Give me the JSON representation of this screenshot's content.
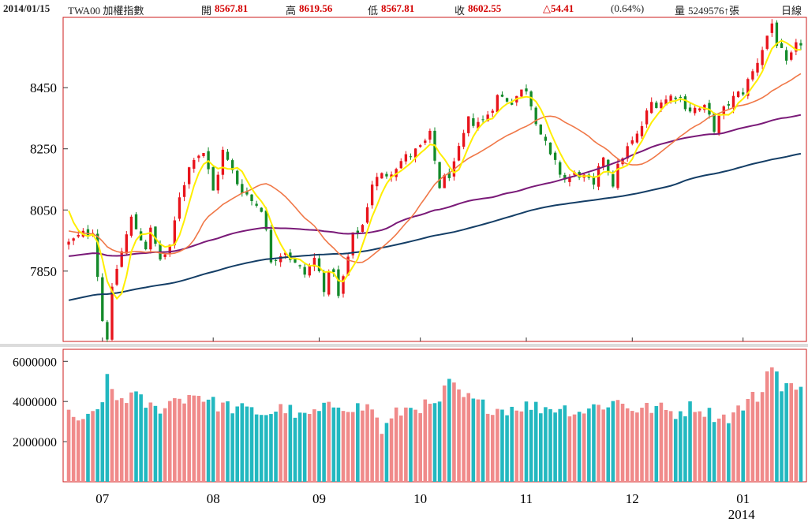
{
  "header": {
    "date": "2014/01/15",
    "symbol": "TWA00 加權指數",
    "open_label": "開",
    "open": "8567.81",
    "high_label": "高",
    "high": "8619.56",
    "low_label": "低",
    "low": "8567.81",
    "close_label": "收",
    "close": "8602.55",
    "change": "△54.41",
    "change_pct": "(0.64%)",
    "volume_label": "量",
    "volume": "5249576↑張",
    "period": "日線"
  },
  "colors": {
    "up": "#e8141c",
    "down": "#138a2a",
    "vol_up": "#f08a8a",
    "vol_down": "#22b8c0",
    "ma5": "#ffee00",
    "ma20": "#f07848",
    "ma60": "#7a1a78",
    "ma120": "#143e66",
    "frame": "#cc1b1b",
    "grid": "#e0e0e0"
  },
  "chart_data": [
    {
      "type": "candlestick",
      "ylim": [
        7620,
        8680
      ],
      "y_ticks": [
        7850,
        8050,
        8250,
        8450
      ],
      "x_tick_labels": [
        {
          "label": "07",
          "index": 7
        },
        {
          "label": "08",
          "index": 30
        },
        {
          "label": "09",
          "index": 52
        },
        {
          "label": "10",
          "index": 73
        },
        {
          "label": "11",
          "index": 95
        },
        {
          "label": "12",
          "index": 117
        },
        {
          "label": "01",
          "index": 140
        }
      ],
      "year_label": {
        "label": "2014",
        "index": 140
      },
      "days": 153,
      "anchors": [
        [
          0,
          7940
        ],
        [
          5,
          7990
        ],
        [
          7,
          7690
        ],
        [
          8,
          7640
        ],
        [
          9,
          7780
        ],
        [
          10,
          7860
        ],
        [
          13,
          8020
        ],
        [
          16,
          7930
        ],
        [
          17,
          7980
        ],
        [
          19,
          7890
        ],
        [
          21,
          7920
        ],
        [
          23,
          8100
        ],
        [
          26,
          8230
        ],
        [
          28,
          8240
        ],
        [
          30,
          8110
        ],
        [
          32,
          8240
        ],
        [
          35,
          8140
        ],
        [
          38,
          8080
        ],
        [
          40,
          8060
        ],
        [
          42,
          7890
        ],
        [
          45,
          7920
        ],
        [
          47,
          7870
        ],
        [
          49,
          7840
        ],
        [
          51,
          7890
        ],
        [
          53,
          7800
        ],
        [
          55,
          7860
        ],
        [
          56,
          7760
        ],
        [
          59,
          7960
        ],
        [
          61,
          8000
        ],
        [
          63,
          8140
        ],
        [
          66,
          8170
        ],
        [
          69,
          8210
        ],
        [
          73,
          8250
        ],
        [
          75,
          8290
        ],
        [
          77,
          8130
        ],
        [
          80,
          8190
        ],
        [
          83,
          8340
        ],
        [
          86,
          8340
        ],
        [
          89,
          8420
        ],
        [
          92,
          8410
        ],
        [
          95,
          8450
        ],
        [
          98,
          8300
        ],
        [
          100,
          8220
        ],
        [
          103,
          8150
        ],
        [
          106,
          8170
        ],
        [
          109,
          8120
        ],
        [
          111,
          8230
        ],
        [
          113,
          8140
        ],
        [
          115,
          8230
        ],
        [
          118,
          8290
        ],
        [
          121,
          8400
        ],
        [
          124,
          8410
        ],
        [
          126,
          8430
        ],
        [
          129,
          8380
        ],
        [
          132,
          8380
        ],
        [
          134,
          8320
        ],
        [
          137,
          8400
        ],
        [
          140,
          8440
        ],
        [
          142,
          8500
        ],
        [
          144,
          8580
        ],
        [
          146,
          8660
        ],
        [
          147,
          8600
        ],
        [
          149,
          8520
        ],
        [
          151,
          8580
        ],
        [
          153,
          8620
        ]
      ]
    },
    {
      "type": "bar",
      "ylim": [
        0,
        6600000
      ],
      "y_ticks": [
        2000000,
        4000000,
        6000000
      ],
      "vol_anchors": [
        [
          0,
          3500000
        ],
        [
          3,
          2900000
        ],
        [
          6,
          3600000
        ],
        [
          8,
          4900000
        ],
        [
          10,
          4100000
        ],
        [
          13,
          4300000
        ],
        [
          18,
          3600000
        ],
        [
          23,
          4200000
        ],
        [
          27,
          4400000
        ],
        [
          30,
          3900000
        ],
        [
          36,
          3600000
        ],
        [
          41,
          3400000
        ],
        [
          45,
          3700000
        ],
        [
          48,
          3200000
        ],
        [
          52,
          3500000
        ],
        [
          56,
          3900000
        ],
        [
          60,
          3700000
        ],
        [
          63,
          3700000
        ],
        [
          65,
          2500000
        ],
        [
          68,
          3400000
        ],
        [
          72,
          3800000
        ],
        [
          76,
          3700000
        ],
        [
          79,
          4800000
        ],
        [
          82,
          4200000
        ],
        [
          86,
          3800000
        ],
        [
          90,
          3600000
        ],
        [
          94,
          3800000
        ],
        [
          98,
          3700000
        ],
        [
          102,
          3700000
        ],
        [
          106,
          3500000
        ],
        [
          110,
          3800000
        ],
        [
          114,
          4000000
        ],
        [
          118,
          3600000
        ],
        [
          122,
          3700000
        ],
        [
          126,
          3400000
        ],
        [
          130,
          3800000
        ],
        [
          134,
          3300000
        ],
        [
          137,
          3200000
        ],
        [
          140,
          3800000
        ],
        [
          144,
          4500000
        ],
        [
          146,
          6300000
        ],
        [
          148,
          4500000
        ],
        [
          150,
          4700000
        ],
        [
          152,
          5200000
        ]
      ]
    }
  ]
}
